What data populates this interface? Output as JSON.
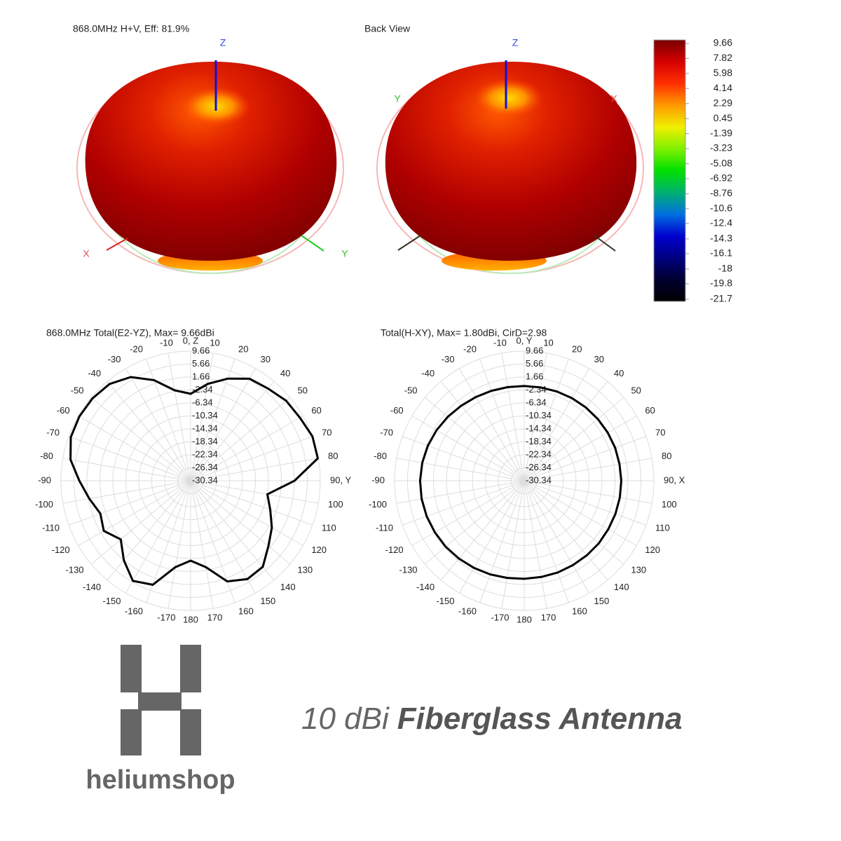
{
  "views": [
    {
      "title": "868.0MHz H+V, Eff: 81.9%",
      "axes": {
        "z": "Z",
        "x": "X",
        "y": "Y"
      }
    },
    {
      "title": "Back View",
      "axes": {
        "z": "Z",
        "x": "X",
        "y": "Y"
      }
    }
  ],
  "colorbar": {
    "clim": [
      -21.7,
      9.66
    ],
    "ticks": [
      9.66,
      7.82,
      5.98,
      4.14,
      2.29,
      0.45,
      -1.39,
      -3.23,
      -5.08,
      -6.92,
      -8.76,
      -10.6,
      -12.4,
      -14.3,
      -16.1,
      -18,
      -19.8,
      -21.7
    ],
    "colors": [
      "#7a0000",
      "#d40000",
      "#ff3000",
      "#ff9900",
      "#f0f000",
      "#80f000",
      "#00e000",
      "#00b070",
      "#0070e0",
      "#0000d0",
      "#000080",
      "#000030",
      "#000000"
    ]
  },
  "chart_data": [
    {
      "type": "polar",
      "title": "868.0MHz Total(E2-YZ), Max= 9.66dBi",
      "direction": "clockwise",
      "zero": "top",
      "grid": true,
      "color": "#000000",
      "rlim": [
        -30.34,
        9.66
      ],
      "rticks": [
        9.66,
        5.66,
        1.66,
        -2.34,
        -6.34,
        -10.34,
        -14.34,
        -18.34,
        -22.34,
        -26.34,
        -30.34
      ],
      "thetaticks": [
        {
          "value": 0,
          "label": "0, Z"
        },
        10,
        20,
        30,
        40,
        50,
        60,
        70,
        80,
        {
          "value": 90,
          "label": "90, Y"
        },
        100,
        110,
        120,
        130,
        140,
        150,
        160,
        170,
        180,
        -170,
        -160,
        -150,
        -140,
        -130,
        -120,
        -110,
        -100,
        -90,
        -80,
        -70,
        -60,
        -50,
        -40,
        -30,
        -20,
        -10
      ],
      "theta": [
        0,
        10,
        20,
        30,
        40,
        50,
        60,
        70,
        80,
        90,
        100,
        110,
        120,
        130,
        140,
        150,
        160,
        170,
        180,
        -170,
        -160,
        -150,
        -140,
        -130,
        -120,
        -110,
        -100,
        -90,
        -80,
        -70,
        -60,
        -50,
        -40,
        -30,
        -20,
        -10
      ],
      "values": [
        -3.5,
        0,
        3.2,
        6,
        6.8,
        8.1,
        8.6,
        9.66,
        9.5,
        1.7,
        -6.3,
        -4.2,
        -1.4,
        1,
        4.3,
        4.7,
        2.7,
        -3.3,
        -5.7,
        -3.3,
        3.8,
        5.3,
        1.7,
        -2.2,
        0.6,
        -0.7,
        1.4,
        4,
        7.3,
        9,
        9.3,
        9.2,
        8.6,
        6.6,
        2.7,
        -2
      ]
    },
    {
      "type": "polar",
      "title": "Total(H-XY), Max= 1.80dBi, CirD=2.98",
      "direction": "clockwise",
      "zero": "top",
      "grid": true,
      "color": "#000000",
      "rlim": [
        -30.34,
        9.66
      ],
      "rticks": [
        9.66,
        5.66,
        1.66,
        -2.34,
        -6.34,
        -10.34,
        -14.34,
        -18.34,
        -22.34,
        -26.34,
        -30.34
      ],
      "thetaticks": [
        {
          "value": 0,
          "label": "0, Y"
        },
        10,
        20,
        30,
        40,
        50,
        60,
        70,
        80,
        {
          "value": 90,
          "label": "90, X"
        },
        100,
        110,
        120,
        130,
        140,
        150,
        160,
        170,
        180,
        -170,
        -160,
        -150,
        -140,
        -130,
        -120,
        -110,
        -100,
        -90,
        -80,
        -70,
        -60,
        -50,
        -40,
        -30,
        -20,
        -10
      ],
      "theta": [
        0,
        10,
        20,
        30,
        40,
        50,
        60,
        70,
        80,
        90,
        100,
        110,
        120,
        130,
        140,
        150,
        160,
        170,
        180,
        -170,
        -160,
        -150,
        -140,
        -130,
        -120,
        -110,
        -100,
        -90,
        -80,
        -70,
        -60,
        -50,
        -40,
        -30,
        -20,
        -10
      ],
      "values": [
        -1.1,
        -1.1,
        -1,
        -0.9,
        -0.8,
        -0.7,
        -0.6,
        -0.5,
        -0.5,
        -0.4,
        -0.4,
        -0.4,
        -0.4,
        -0.3,
        -0.3,
        -0.3,
        -0.2,
        -0.2,
        -0.1,
        0.1,
        0.4,
        0.7,
        1,
        1.3,
        1.5,
        1.7,
        1.8,
        1.8,
        1.6,
        1.3,
        0.9,
        0.4,
        -0.1,
        -0.5,
        -0.8,
        -1
      ]
    }
  ],
  "brand": {
    "name": "heliumshop",
    "tagline_light": "10 dBi",
    "tagline_bold": "Fiberglass Antenna"
  }
}
